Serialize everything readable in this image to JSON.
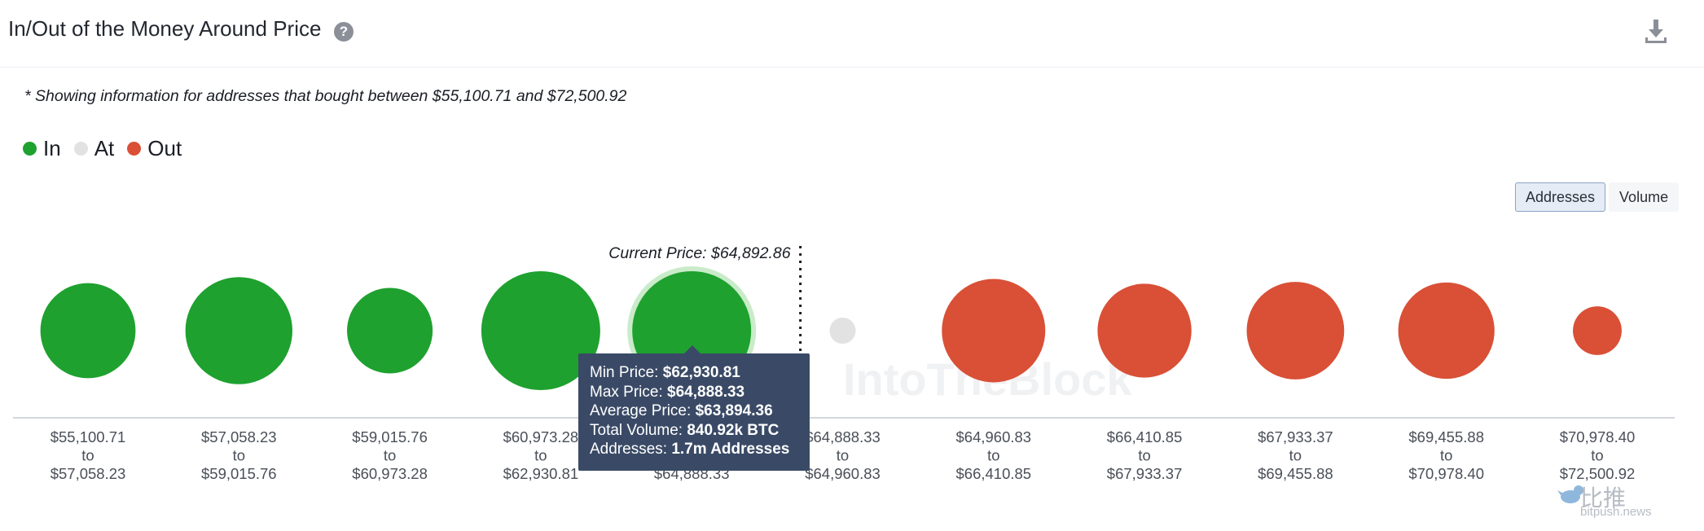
{
  "header": {
    "title": "In/Out of the Money Around Price",
    "help_icon": "question-circle-icon",
    "download_icon": "download-icon"
  },
  "note": "* Showing information for addresses that bought between $55,100.71 and $72,500.92",
  "legend": [
    {
      "label": "In",
      "color": "#1ea12f"
    },
    {
      "label": "At",
      "color": "#e2e2e2"
    },
    {
      "label": "Out",
      "color": "#d95036"
    }
  ],
  "toggle": {
    "active": "Addresses",
    "inactive": "Volume"
  },
  "chart_data": {
    "type": "scatter",
    "subtype": "bubble",
    "current_price_label": "Current Price: $64,892.86",
    "current_price_after_bucket": 5,
    "buckets": [
      {
        "from": "$55,100.71",
        "to": "$57,058.23",
        "status": "In",
        "relative_size": 0.8
      },
      {
        "from": "$57,058.23",
        "to": "$59,015.76",
        "status": "In",
        "relative_size": 0.9
      },
      {
        "from": "$59,015.76",
        "to": "$60,973.28",
        "status": "In",
        "relative_size": 0.72
      },
      {
        "from": "$60,973.28",
        "to": "$62,930.81",
        "status": "In",
        "relative_size": 1.0
      },
      {
        "from": "$62,930.81",
        "to": "$64,888.33",
        "status": "In",
        "relative_size": 1.0,
        "highlighted": true
      },
      {
        "from": "$64,888.33",
        "to": "$64,960.83",
        "status": "At",
        "relative_size": 0.22
      },
      {
        "from": "$64,960.83",
        "to": "$66,410.85",
        "status": "Out",
        "relative_size": 0.87
      },
      {
        "from": "$66,410.85",
        "to": "$67,933.37",
        "status": "Out",
        "relative_size": 0.79
      },
      {
        "from": "$67,933.37",
        "to": "$69,455.88",
        "status": "Out",
        "relative_size": 0.82
      },
      {
        "from": "$69,455.88",
        "to": "$70,978.40",
        "status": "Out",
        "relative_size": 0.81
      },
      {
        "from": "$70,978.40",
        "to": "$72,500.92",
        "status": "Out",
        "relative_size": 0.41
      }
    ],
    "to_word": "to",
    "tooltip": {
      "bucket_index": 4,
      "rows": [
        {
          "label": "Min Price: ",
          "value": "$62,930.81"
        },
        {
          "label": "Max Price: ",
          "value": "$64,888.33"
        },
        {
          "label": "Average Price: ",
          "value": "$63,894.36"
        },
        {
          "label": "Total Volume: ",
          "value": "840.92k BTC"
        },
        {
          "label": "Addresses: ",
          "value": "1.7m Addresses"
        }
      ]
    },
    "colors": {
      "In": "#1ea12f",
      "At": "#e2e2e2",
      "Out": "#d95036",
      "highlight_ring": "#c9ebc9",
      "axis": "#d3d6db"
    }
  },
  "watermark": {
    "brand": "比推",
    "domain": "bitpush.news"
  }
}
